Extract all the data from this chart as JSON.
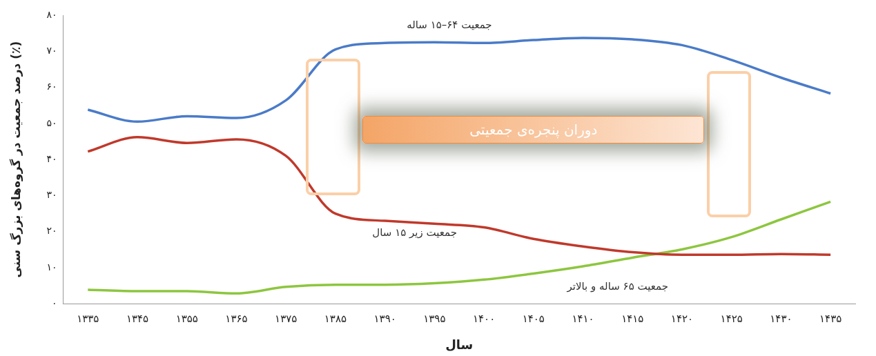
{
  "chart_data": {
    "type": "line",
    "xlabel": "سال",
    "ylabel": "درصد جمعیت در گروه‌های بزرگ سنی (٪)",
    "categories": [
      "۱۳۳۵",
      "۱۳۴۵",
      "۱۳۵۵",
      "۱۳۶۵",
      "۱۳۷۵",
      "۱۳۸۵",
      "۱۳۹۰",
      "۱۳۹۵",
      "۱۴۰۰",
      "۱۴۰۵",
      "۱۴۱۰",
      "۱۴۱۵",
      "۱۴۲۰",
      "۱۴۲۵",
      "۱۴۳۰",
      "۱۴۳۵"
    ],
    "series": [
      {
        "name": "جمعیت ۶۴–۱۵ ساله",
        "color": "#4a7bc8",
        "values": [
          53.8,
          50.5,
          52,
          51.5,
          56.4,
          70.5,
          72.3,
          72.5,
          72.3,
          73.1,
          73.7,
          73.3,
          71.7,
          67.6,
          62.7,
          58.3
        ]
      },
      {
        "name": "جمعیت زیر ۱۵ سال",
        "color": "#c0392b",
        "values": [
          42.2,
          46.2,
          44.6,
          45.6,
          41,
          25,
          23,
          22.2,
          21.2,
          18,
          15.9,
          14.3,
          13.6,
          13.6,
          13.8,
          13.6
        ]
      },
      {
        "name": "جمعیت ۶۵ ساله و بالاتر",
        "color": "#8dc63f",
        "values": [
          3.9,
          3.5,
          3.5,
          2.9,
          4.7,
          5.3,
          5.3,
          5.7,
          6.7,
          8.4,
          10.4,
          12.8,
          15.1,
          18.5,
          23.4,
          28.3
        ]
      }
    ],
    "ylim": [
      0,
      80
    ],
    "yticks": [
      {
        "value": 0,
        "label": "۰"
      },
      {
        "value": 10,
        "label": "۱۰"
      },
      {
        "value": 20,
        "label": "۲۰"
      },
      {
        "value": 30,
        "label": "۳۰"
      },
      {
        "value": 40,
        "label": "۴۰"
      },
      {
        "value": 50,
        "label": "۵۰"
      },
      {
        "value": 60,
        "label": "۶۰"
      },
      {
        "value": 70,
        "label": "۷۰"
      },
      {
        "value": 80,
        "label": "۸۰"
      }
    ],
    "annotations": [
      "دوران پنجره‌ی جمعیتی"
    ],
    "grid": false,
    "legend": false,
    "marker": "none",
    "line_style": "solid"
  }
}
